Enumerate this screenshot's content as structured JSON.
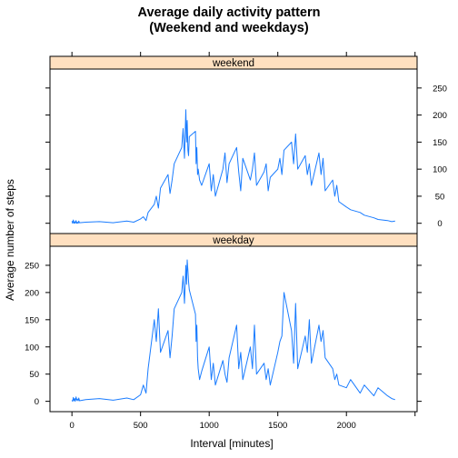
{
  "chart_data": {
    "type": "line",
    "title_line1": "Average daily activity pattern",
    "title_line2": "(Weekend and weekdays)",
    "xlabel": "Interval [minutes]",
    "ylabel": "Average number of steps",
    "xlim": [
      -160,
      2515
    ],
    "ylim": [
      -19,
      285
    ],
    "xticks": [
      0,
      500,
      1000,
      1500,
      2000
    ],
    "yticks": [
      0,
      50,
      100,
      150,
      200,
      250
    ],
    "grid": false,
    "colors": {
      "line": "#1a7cff",
      "strip": "#ffe0c0",
      "strip_border": "#000000"
    },
    "panels": [
      {
        "name": "weekend",
        "ytick_side": "right",
        "series": [
          {
            "x": [
              0,
              5,
              10,
              15,
              20,
              25,
              30,
              35,
              40,
              45,
              50,
              55,
              100,
              200,
              300,
              400,
              450,
              500,
              520,
              540,
              555,
              600,
              615,
              630,
              645,
              700,
              715,
              730,
              745,
              800,
              810,
              820,
              830,
              835,
              840,
              845,
              850,
              855,
              900,
              905,
              910,
              915,
              920,
              930,
              945,
              1000,
              1015,
              1030,
              1045,
              1100,
              1115,
              1130,
              1145,
              1200,
              1215,
              1230,
              1245,
              1300,
              1315,
              1330,
              1345,
              1400,
              1415,
              1430,
              1445,
              1500,
              1515,
              1530,
              1545,
              1600,
              1615,
              1630,
              1645,
              1700,
              1715,
              1730,
              1745,
              1800,
              1815,
              1830,
              1845,
              1900,
              1915,
              1930,
              1945,
              2000,
              2030,
              2100,
              2130,
              2200,
              2230,
              2300,
              2330,
              2355
            ],
            "y": [
              4,
              0,
              6,
              0,
              3,
              0,
              5,
              0,
              2,
              0,
              4,
              1,
              2,
              3,
              1,
              4,
              2,
              8,
              12,
              5,
              20,
              35,
              50,
              28,
              65,
              90,
              55,
              80,
              110,
              140,
              175,
              120,
              210,
              150,
              190,
              135,
              125,
              160,
              170,
              110,
              140,
              90,
              100,
              80,
              70,
              110,
              60,
              90,
              50,
              100,
              130,
              75,
              110,
              140,
              95,
              60,
              120,
              80,
              100,
              130,
              70,
              95,
              110,
              60,
              85,
              100,
              120,
              90,
              135,
              150,
              110,
              165,
              100,
              125,
              90,
              110,
              70,
              130,
              90,
              120,
              60,
              80,
              50,
              70,
              40,
              30,
              25,
              20,
              15,
              10,
              7,
              5,
              3,
              4
            ]
          }
        ]
      },
      {
        "name": "weekday",
        "ytick_side": "left",
        "series": [
          {
            "x": [
              0,
              5,
              10,
              15,
              20,
              25,
              30,
              35,
              40,
              45,
              50,
              55,
              100,
              200,
              300,
              400,
              450,
              500,
              520,
              540,
              555,
              600,
              615,
              630,
              645,
              700,
              715,
              730,
              745,
              800,
              810,
              820,
              830,
              835,
              840,
              845,
              850,
              855,
              900,
              905,
              910,
              915,
              920,
              930,
              945,
              1000,
              1015,
              1030,
              1045,
              1100,
              1115,
              1130,
              1145,
              1200,
              1215,
              1230,
              1245,
              1300,
              1315,
              1330,
              1345,
              1400,
              1415,
              1430,
              1445,
              1500,
              1515,
              1530,
              1545,
              1600,
              1615,
              1630,
              1645,
              1700,
              1715,
              1730,
              1745,
              1800,
              1815,
              1830,
              1845,
              1900,
              1915,
              1930,
              1945,
              2000,
              2030,
              2100,
              2130,
              2200,
              2230,
              2300,
              2330,
              2355
            ],
            "y": [
              2,
              0,
              7,
              1,
              5,
              0,
              8,
              2,
              4,
              1,
              6,
              1,
              3,
              5,
              2,
              6,
              3,
              12,
              30,
              15,
              60,
              150,
              110,
              170,
              90,
              130,
              80,
              120,
              170,
              200,
              230,
              180,
              250,
              215,
              260,
              240,
              220,
              205,
              160,
              110,
              140,
              80,
              60,
              40,
              55,
              100,
              40,
              70,
              30,
              75,
              50,
              35,
              80,
              140,
              60,
              90,
              40,
              100,
              60,
              140,
              50,
              70,
              40,
              60,
              30,
              90,
              110,
              120,
              200,
              130,
              70,
              180,
              60,
              120,
              90,
              150,
              70,
              140,
              110,
              130,
              80,
              60,
              40,
              50,
              30,
              25,
              40,
              15,
              30,
              10,
              25,
              10,
              5,
              3
            ]
          }
        ]
      }
    ]
  }
}
